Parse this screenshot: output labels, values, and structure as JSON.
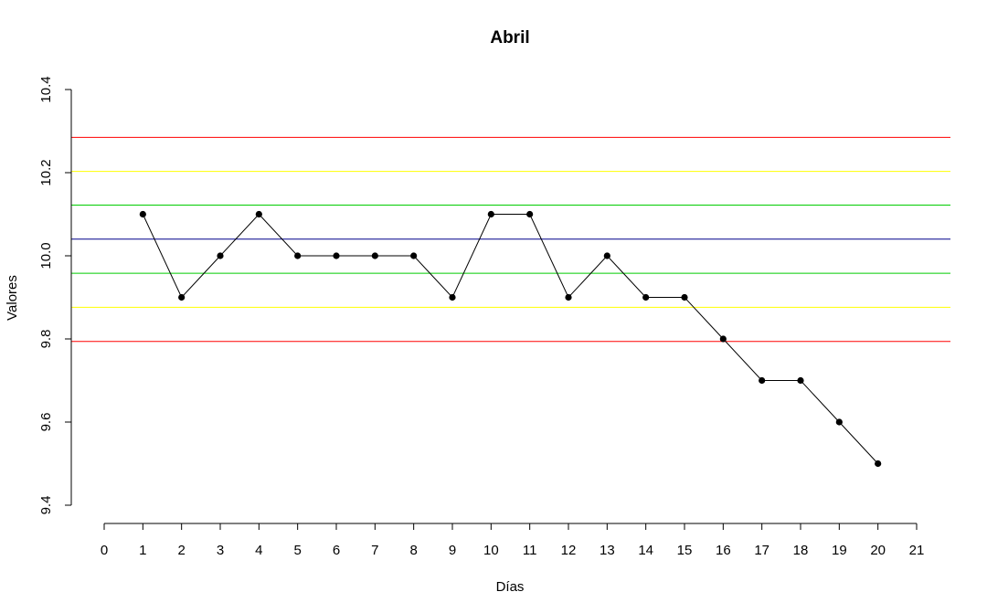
{
  "chart_data": {
    "type": "line",
    "title": "Abril",
    "xlabel": "Días",
    "ylabel": "Valores",
    "xlim": [
      0,
      21
    ],
    "ylim": [
      9.4,
      10.4
    ],
    "x_ticks": [
      0,
      1,
      2,
      3,
      4,
      5,
      6,
      7,
      8,
      9,
      10,
      11,
      12,
      13,
      14,
      15,
      16,
      17,
      18,
      19,
      20,
      21
    ],
    "x_tick_labels": [
      "0",
      "1",
      "2",
      "3",
      "4",
      "5",
      "6",
      "7",
      "8",
      "9",
      "10",
      "11",
      "12",
      "13",
      "14",
      "15",
      "16",
      "17",
      "18",
      "19",
      "20",
      "21"
    ],
    "y_ticks": [
      9.4,
      9.6,
      9.8,
      10.0,
      10.2,
      10.4
    ],
    "y_tick_labels": [
      "9.4",
      "9.6",
      "9.8",
      "10.0",
      "10.2",
      "10.4"
    ],
    "grid": false,
    "series": [
      {
        "x": [
          1,
          2,
          3,
          4,
          5,
          6,
          7,
          8,
          9,
          10,
          11,
          12,
          13,
          14,
          15,
          16,
          17,
          18,
          19,
          20
        ],
        "values": [
          10.1,
          9.9,
          10.0,
          10.1,
          10.0,
          10.0,
          10.0,
          10.0,
          9.9,
          10.1,
          10.1,
          9.9,
          10.0,
          9.9,
          9.9,
          9.8,
          9.7,
          9.7,
          9.6,
          9.5
        ],
        "color": "#000000"
      }
    ],
    "reference_lines": [
      {
        "y": 10.285,
        "color": "#ff0000"
      },
      {
        "y": 10.203,
        "color": "#ffff00"
      },
      {
        "y": 10.122,
        "color": "#00cc00"
      },
      {
        "y": 10.04,
        "color": "#00008b"
      },
      {
        "y": 9.958,
        "color": "#00cc00"
      },
      {
        "y": 9.876,
        "color": "#ffff00"
      },
      {
        "y": 9.794,
        "color": "#ff0000"
      }
    ]
  }
}
